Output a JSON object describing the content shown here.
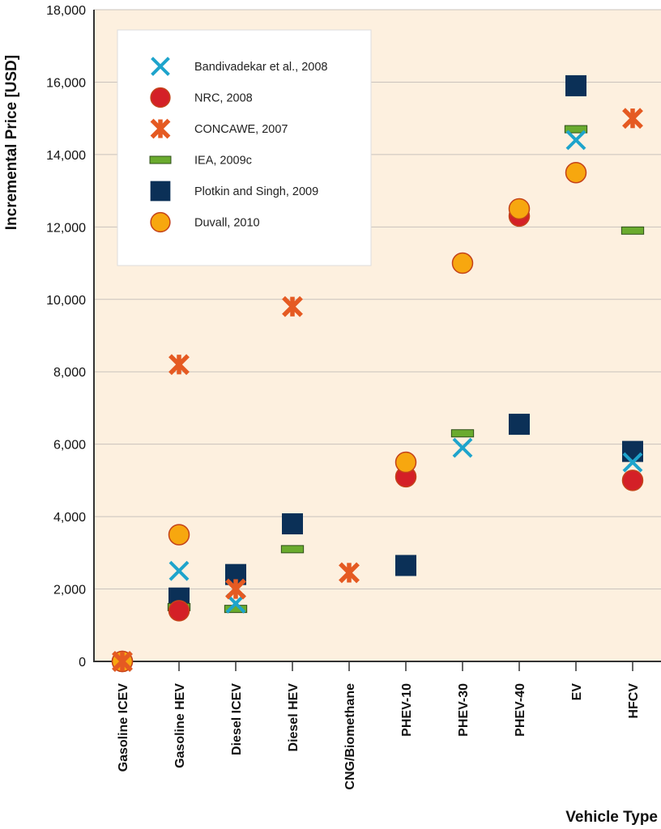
{
  "chart_data": {
    "type": "scatter",
    "title": "",
    "xlabel": "Vehicle Type",
    "ylabel": "Incremental Price [USD]",
    "ylim": [
      0,
      18000
    ],
    "yticks": [
      0,
      2000,
      4000,
      6000,
      8000,
      10000,
      12000,
      14000,
      16000,
      18000
    ],
    "ytick_labels": [
      "0",
      "2,000",
      "4,000",
      "6,000",
      "8,000",
      "10,000",
      "12,000",
      "14,000",
      "16,000",
      "18,000"
    ],
    "grid": "horizontal",
    "legend_position": "top-left",
    "background": "#fdf0df",
    "categories": [
      "Gasoline ICEV",
      "Gasoline HEV",
      "Diesel ICEV",
      "Diesel HEV",
      "CNG/Biomethane",
      "PHEV-10",
      "PHEV-30",
      "PHEV-40",
      "EV",
      "HFCV"
    ],
    "series": [
      {
        "name": "Bandivadekar et al., 2008",
        "marker": "x",
        "color": "#1ea4cc",
        "values": [
          0,
          2500,
          1600,
          null,
          null,
          null,
          5900,
          null,
          14400,
          5500
        ]
      },
      {
        "name": "NRC, 2008",
        "marker": "circle",
        "color": "#d42027",
        "values": [
          0,
          1400,
          null,
          null,
          null,
          5100,
          null,
          12300,
          null,
          5000
        ]
      },
      {
        "name": "CONCAWE, 2007",
        "marker": "asterisk",
        "color": "#e55a22",
        "values": [
          0,
          8200,
          2000,
          9800,
          2450,
          null,
          null,
          null,
          null,
          15000
        ]
      },
      {
        "name": "IEA, 2009c",
        "marker": "dash",
        "color": "#6aab2e",
        "values": [
          null,
          1500,
          1450,
          3100,
          null,
          null,
          6300,
          null,
          14700,
          11900
        ]
      },
      {
        "name": "Plotkin and Singh, 2009",
        "marker": "square",
        "color": "#0b3057",
        "values": [
          null,
          1750,
          2400,
          3800,
          null,
          2650,
          null,
          6550,
          15900,
          5800
        ]
      },
      {
        "name": "Duvall, 2010",
        "marker": "circle",
        "color": "#f7a70f",
        "values": [
          0,
          3500,
          null,
          null,
          null,
          5500,
          11000,
          12500,
          13500,
          null
        ]
      }
    ]
  }
}
